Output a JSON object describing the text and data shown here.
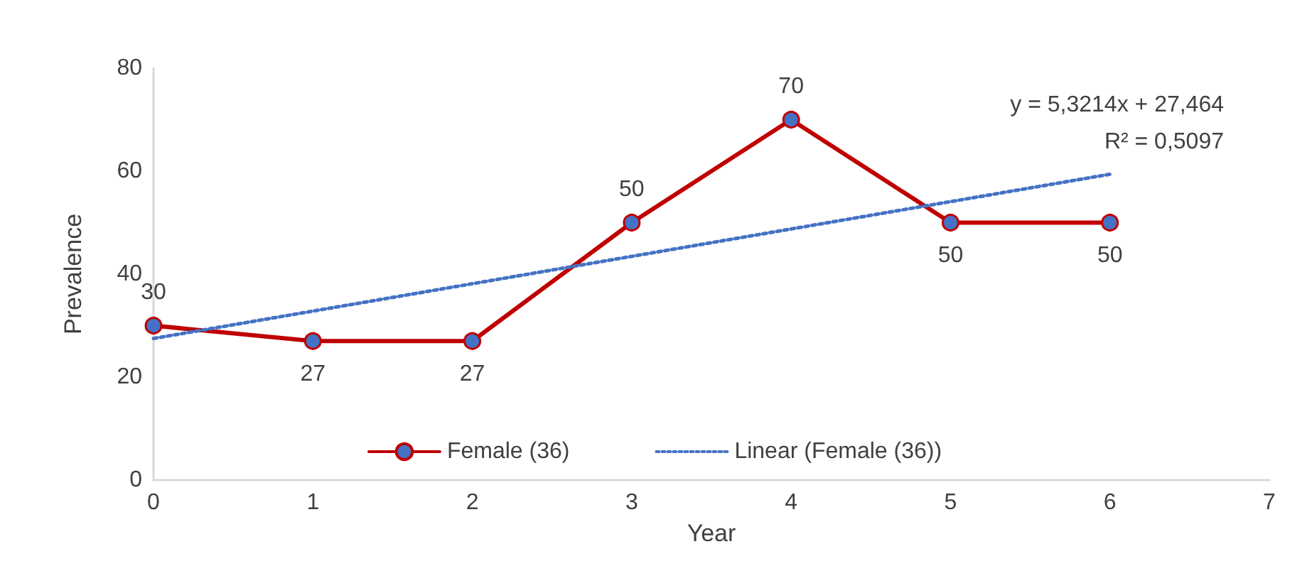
{
  "chart_data": {
    "type": "line",
    "xlabel": "Year",
    "ylabel": "Prevalence",
    "xlim": [
      0,
      7
    ],
    "xticks": [
      0,
      1,
      2,
      3,
      4,
      5,
      6,
      7
    ],
    "ylim": [
      0,
      80
    ],
    "yticks": [
      0,
      20,
      40,
      60,
      80
    ],
    "series": [
      {
        "name": "Female (36)",
        "color": "#c00000",
        "x": [
          0,
          1,
          2,
          3,
          4,
          5,
          6
        ],
        "values": [
          30,
          27,
          27,
          50,
          70,
          50,
          50
        ],
        "value_labels": [
          "30",
          "27",
          "27",
          "50",
          "70",
          "50",
          "50"
        ],
        "marker": "circle",
        "line_style": "solid"
      },
      {
        "name": "Linear (Female (36))",
        "color": "#4472c4",
        "x": [
          0,
          6
        ],
        "values": [
          27.5,
          59.4
        ],
        "marker": "none",
        "line_style": "dotted"
      }
    ],
    "grid": false,
    "legend": "bottom",
    "annotations": [
      "y = 5,3214x + 27,464",
      "R² = 0,5097"
    ]
  }
}
